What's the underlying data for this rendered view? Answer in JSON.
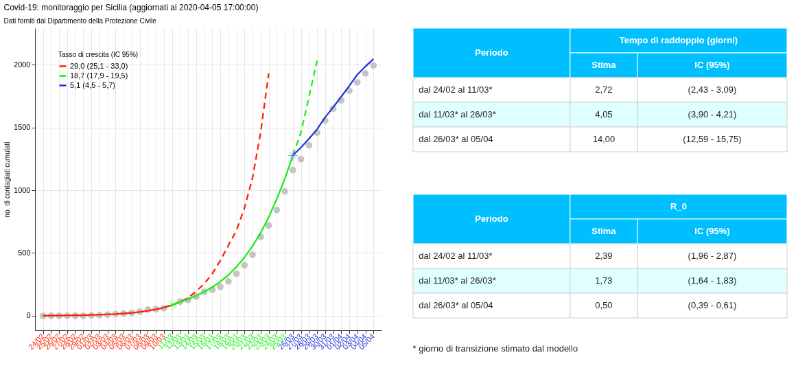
{
  "chart_data": [
    {
      "type": "line",
      "title": "Covid-19: monitoraggio per Sicilia (aggiornati al 2020-04-05 17:00:00)",
      "subtitle": "Dati forniti dal Dipartimento della Protezione Civile",
      "ylabel": "no. di contagiati cumulati",
      "categories": [
        "24/02",
        "25/02",
        "26/02",
        "27/02",
        "28/02",
        "29/02",
        "01/03",
        "02/03",
        "03/03",
        "04/03",
        "05/03",
        "06/03",
        "07/03",
        "08/03",
        "09/03",
        "10/03",
        "11/03",
        "12/03",
        "13/03",
        "14/03",
        "15/03",
        "16/03",
        "17/03",
        "18/03",
        "19/03",
        "20/03",
        "21/03",
        "22/03",
        "23/03",
        "24/03",
        "25/03",
        "26/03",
        "27/03",
        "28/03",
        "29/03",
        "30/03",
        "31/03",
        "01/04",
        "02/04",
        "03/04",
        "04/04",
        "05/04"
      ],
      "ylim": [
        -115,
        2290
      ],
      "yticks": [
        0,
        500,
        1000,
        1500,
        2000
      ],
      "grid": true,
      "legend": "top left",
      "legend_title": "Tasso di crescita (IC 95%)",
      "series": [
        {
          "type": "scatter",
          "marker": "circle",
          "color": "#bfbfbf",
          "values": [
            0,
            0,
            0,
            0,
            0,
            0,
            3,
            5,
            9,
            14,
            18,
            24,
            33,
            49,
            53,
            61,
            null,
            113,
            125,
            153,
            191,
            208,
            231,
            274,
            335,
            403,
            486,
            628,
            720,
            842,
            990,
            1160,
            1247,
            1358,
            1458,
            1554,
            1649,
            1715,
            1792,
            1858,
            1930,
            1993
          ]
        },
        {
          "type": "line",
          "line_style": "solid",
          "name": "29,0 (25,1 - 33,0)",
          "color": "#ff2200",
          "values": [
            1,
            2,
            2,
            3,
            4,
            5,
            7,
            9,
            11,
            14,
            19,
            24,
            31,
            40,
            51,
            66,
            85,
            null,
            null,
            null,
            null,
            null,
            null,
            null,
            null,
            null,
            null,
            null,
            null,
            null,
            null,
            null,
            null,
            null,
            null,
            null,
            null,
            null,
            null,
            null,
            null,
            null
          ]
        },
        {
          "type": "line",
          "line_style": "dashed",
          "color": "#ff2200",
          "values": [
            null,
            null,
            null,
            null,
            null,
            null,
            null,
            null,
            null,
            null,
            null,
            null,
            null,
            null,
            null,
            null,
            85,
            110,
            142,
            195,
            255,
            335,
            440,
            560,
            680,
            860,
            1100,
            1460,
            1930,
            null,
            null,
            null,
            null,
            null,
            null,
            null,
            null,
            null,
            null,
            null,
            null,
            null
          ]
        },
        {
          "type": "line",
          "line_style": "solid",
          "name": "18,7 (17,9 - 19,5)",
          "color": "#1aee1a",
          "values": [
            null,
            null,
            null,
            null,
            null,
            null,
            null,
            null,
            null,
            null,
            null,
            null,
            null,
            null,
            null,
            null,
            85,
            108,
            133,
            160,
            192,
            228,
            272,
            325,
            390,
            465,
            555,
            660,
            785,
            930,
            1090,
            1276,
            null,
            null,
            null,
            null,
            null,
            null,
            null,
            null,
            null,
            null
          ]
        },
        {
          "type": "line",
          "line_style": "dashed",
          "color": "#1aee1a",
          "values": [
            null,
            null,
            null,
            null,
            null,
            null,
            null,
            null,
            null,
            null,
            null,
            null,
            null,
            null,
            null,
            null,
            null,
            null,
            null,
            null,
            null,
            null,
            null,
            null,
            null,
            null,
            null,
            null,
            null,
            null,
            null,
            1276,
            1458,
            1745,
            2030,
            null,
            null,
            null,
            null,
            null,
            null,
            null
          ]
        },
        {
          "type": "line",
          "line_style": "solid",
          "name": "5,1 (4,5 - 5,7)",
          "color": "#2233dd",
          "values": [
            null,
            null,
            null,
            null,
            null,
            null,
            null,
            null,
            null,
            null,
            null,
            null,
            null,
            null,
            null,
            null,
            null,
            null,
            null,
            null,
            null,
            null,
            null,
            null,
            null,
            null,
            null,
            null,
            null,
            null,
            null,
            1276,
            1340,
            1410,
            1484,
            1580,
            1660,
            1745,
            1830,
            1920,
            1985,
            2045
          ]
        },
        {
          "type": "scatter",
          "marker": "cross",
          "color": "#33ee33",
          "x": [
            "11/03"
          ],
          "values": [
            85
          ]
        },
        {
          "type": "scatter",
          "marker": "cross",
          "color": "#5a6cff",
          "x": [
            "26/03"
          ],
          "values": [
            1276
          ]
        }
      ]
    },
    {
      "type": "other",
      "title": "Tempo di raddoppio (giorni)",
      "categories": [
        "Periodo",
        "Stima",
        "IC (95%)"
      ],
      "color": "#00bfff",
      "cell_labels": [
        [
          "dal 24/02 al 11/03*",
          "2,72",
          "(2,43 - 3,09)"
        ],
        [
          "dal 11/03* al 26/03*",
          "4,05",
          "(3,90 - 4,21)"
        ],
        [
          "dal 26/03* al 05/04",
          "14,00",
          "(12,59 - 15,75)"
        ]
      ]
    },
    {
      "type": "other",
      "title": "R_0",
      "categories": [
        "Periodo",
        "Stima",
        "IC (95%)"
      ],
      "color": "#00bfff",
      "cell_labels": [
        [
          "dal 24/02 al 11/03*",
          "2,39",
          "(1,96 - 2,87)"
        ],
        [
          "dal 11/03* al 26/03*",
          "1,73",
          "(1,64 - 1,83)"
        ],
        [
          "dal 26/03* al 05/04",
          "0,50",
          "(0,39 - 0,61)"
        ]
      ],
      "annotations": [
        "* giorno di transizione stimato dal modello"
      ]
    }
  ]
}
